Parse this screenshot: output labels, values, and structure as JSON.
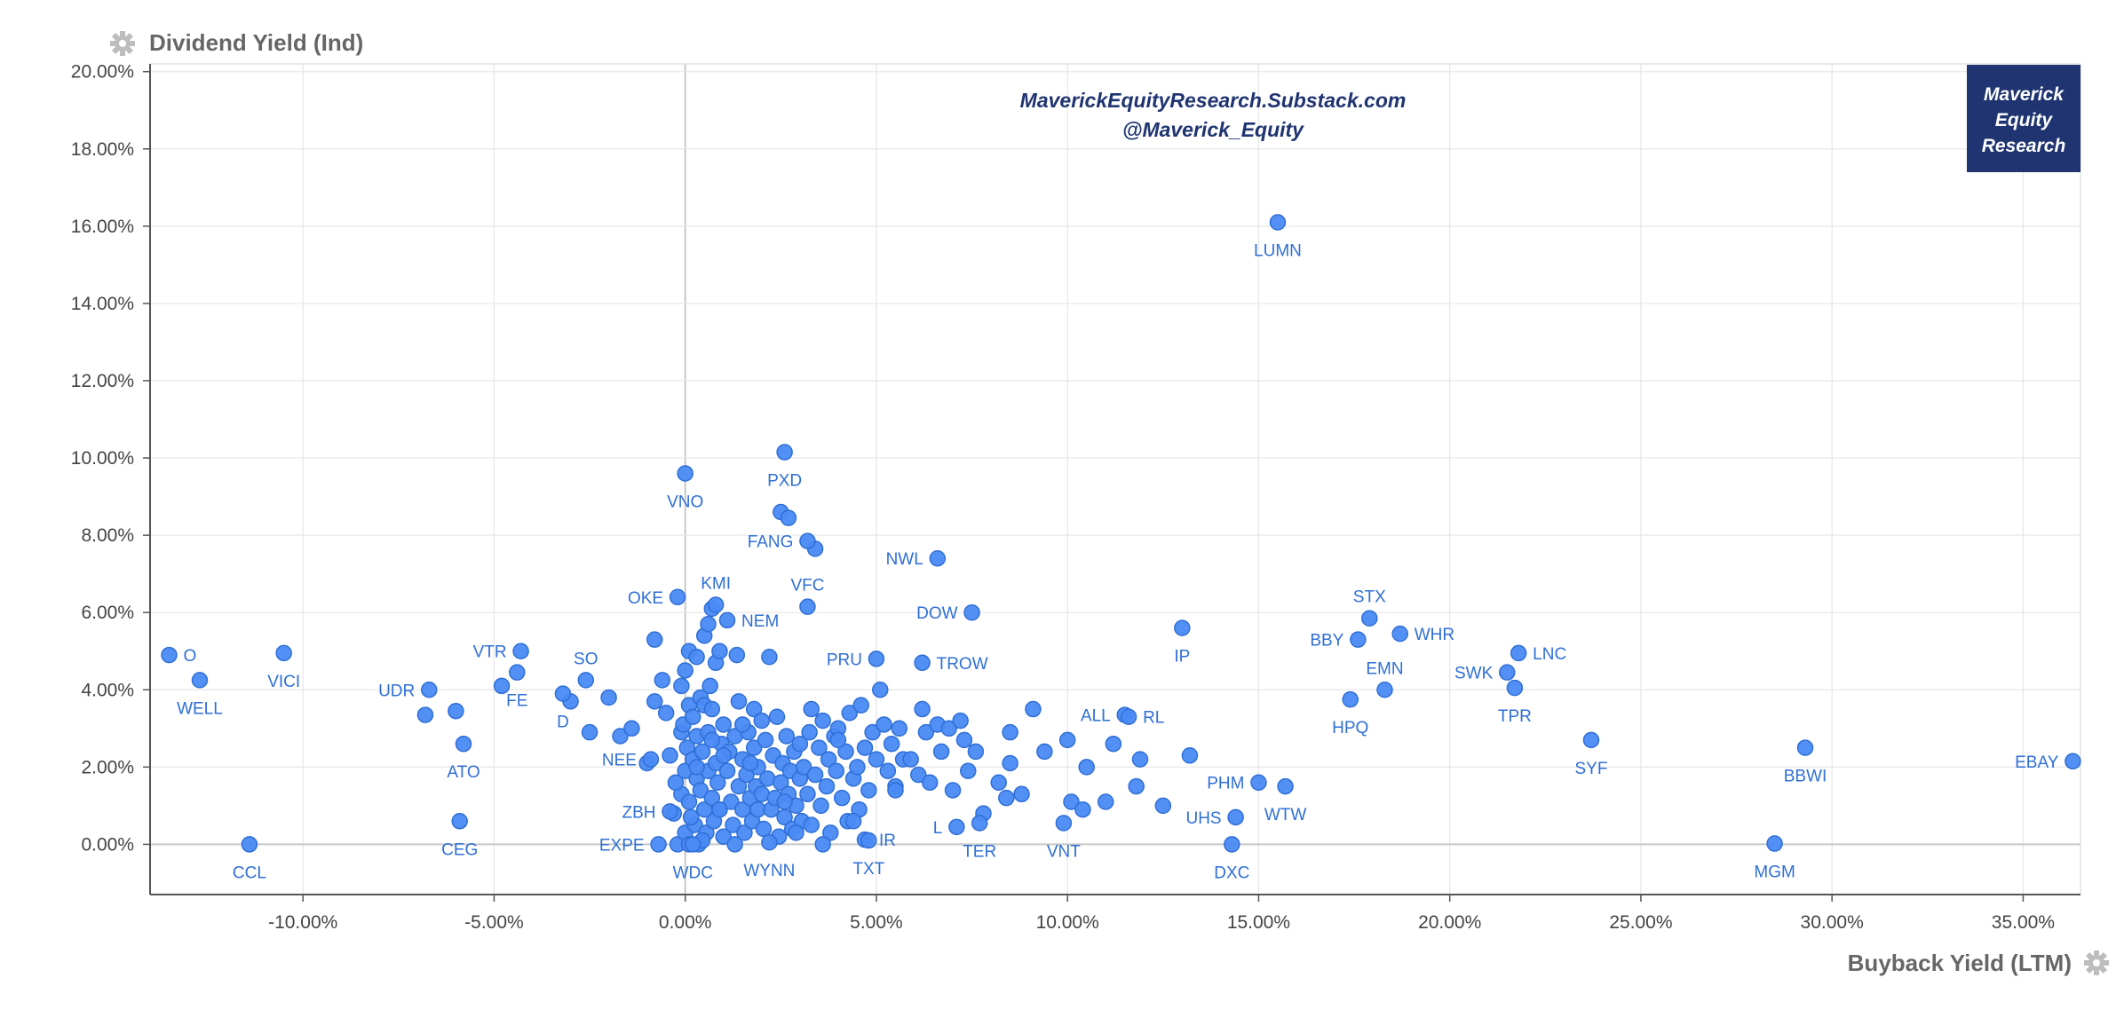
{
  "chart_data": {
    "type": "scatter",
    "ylabel": "Dividend Yield (Ind)",
    "xlabel": "Buyback Yield (LTM)",
    "watermark": [
      "MaverickEquityResearch.Substack.com",
      "@Maverick_Equity"
    ],
    "brand": [
      "Maverick",
      "Equity",
      "Research"
    ],
    "xlim": [
      -14,
      36.5
    ],
    "ylim": [
      -1.3,
      20.2
    ],
    "xticks": [
      -10,
      -5,
      0,
      5,
      10,
      15,
      20,
      25,
      30,
      35
    ],
    "yticks": [
      0,
      2,
      4,
      6,
      8,
      10,
      12,
      14,
      16,
      18,
      20
    ],
    "xtick_labels": [
      "-10.00%",
      "-5.00%",
      "0.00%",
      "5.00%",
      "10.00%",
      "15.00%",
      "20.00%",
      "25.00%",
      "30.00%",
      "35.00%"
    ],
    "ytick_labels": [
      "0.00%",
      "2.00%",
      "4.00%",
      "6.00%",
      "8.00%",
      "10.00%",
      "12.00%",
      "14.00%",
      "16.00%",
      "18.00%",
      "20.00%"
    ],
    "grid": true,
    "colors": {
      "point": "#4a8af4",
      "point_edge": "#2f6fd6",
      "label": "#2f6fd6",
      "brand_bg": "#1f3470",
      "grid": "#e6e6e6",
      "zero_line": "#c8c8c8"
    },
    "labeled_points": [
      {
        "label": "LUMN",
        "x": 15.5,
        "y": 16.1,
        "pos": "below"
      },
      {
        "label": "PXD",
        "x": 2.6,
        "y": 10.15,
        "pos": "below"
      },
      {
        "label": "VNO",
        "x": 0.0,
        "y": 9.6,
        "pos": "below"
      },
      {
        "label": "FANG",
        "x": 3.2,
        "y": 7.85,
        "pos": "left"
      },
      {
        "label": "VFC",
        "x": 3.2,
        "y": 6.15,
        "pos": "above"
      },
      {
        "label": "NWL",
        "x": 6.6,
        "y": 7.4,
        "pos": "left"
      },
      {
        "label": "DOW",
        "x": 7.5,
        "y": 6.0,
        "pos": "left"
      },
      {
        "label": "KMI",
        "x": 0.8,
        "y": 6.2,
        "pos": "above"
      },
      {
        "label": "OKE",
        "x": -0.2,
        "y": 6.4,
        "pos": "left"
      },
      {
        "label": "NEM",
        "x": 1.1,
        "y": 5.8,
        "pos": "right"
      },
      {
        "label": "PRU",
        "x": 5.0,
        "y": 4.8,
        "pos": "left"
      },
      {
        "label": "TROW",
        "x": 6.2,
        "y": 4.7,
        "pos": "right"
      },
      {
        "label": "IP",
        "x": 13.0,
        "y": 5.6,
        "pos": "below"
      },
      {
        "label": "STX",
        "x": 17.9,
        "y": 5.85,
        "pos": "above"
      },
      {
        "label": "BBY",
        "x": 17.6,
        "y": 5.3,
        "pos": "left"
      },
      {
        "label": "WHR",
        "x": 18.7,
        "y": 5.45,
        "pos": "right"
      },
      {
        "label": "EMN",
        "x": 18.3,
        "y": 4.0,
        "pos": "above"
      },
      {
        "label": "HPQ",
        "x": 17.4,
        "y": 3.75,
        "pos": "below"
      },
      {
        "label": "SWK",
        "x": 21.5,
        "y": 4.45,
        "pos": "left"
      },
      {
        "label": "LNC",
        "x": 21.8,
        "y": 4.95,
        "pos": "right"
      },
      {
        "label": "TPR",
        "x": 21.7,
        "y": 4.05,
        "pos": "below"
      },
      {
        "label": "SYF",
        "x": 23.7,
        "y": 2.7,
        "pos": "below"
      },
      {
        "label": "BBWI",
        "x": 29.3,
        "y": 2.5,
        "pos": "below"
      },
      {
        "label": "EBAY",
        "x": 36.3,
        "y": 2.15,
        "pos": "left"
      },
      {
        "label": "MGM",
        "x": 28.5,
        "y": 0.02,
        "pos": "below"
      },
      {
        "label": "ALL",
        "x": 11.5,
        "y": 3.35,
        "pos": "left"
      },
      {
        "label": "RL",
        "x": 11.6,
        "y": 3.3,
        "pos": "right"
      },
      {
        "label": "PHM",
        "x": 15.0,
        "y": 1.6,
        "pos": "left"
      },
      {
        "label": "WTW",
        "x": 15.7,
        "y": 1.5,
        "pos": "below"
      },
      {
        "label": "UHS",
        "x": 14.4,
        "y": 0.7,
        "pos": "left"
      },
      {
        "label": "DXC",
        "x": 14.3,
        "y": 0.0,
        "pos": "below"
      },
      {
        "label": "VNT",
        "x": 9.9,
        "y": 0.55,
        "pos": "below"
      },
      {
        "label": "TER",
        "x": 7.7,
        "y": 0.55,
        "pos": "below"
      },
      {
        "label": "L",
        "x": 7.1,
        "y": 0.45,
        "pos": "left"
      },
      {
        "label": "IR",
        "x": 4.7,
        "y": 0.12,
        "pos": "right"
      },
      {
        "label": "TXT",
        "x": 4.8,
        "y": 0.1,
        "pos": "below"
      },
      {
        "label": "WYNN",
        "x": 2.2,
        "y": 0.05,
        "pos": "below"
      },
      {
        "label": "WDC",
        "x": 0.2,
        "y": 0.0,
        "pos": "below"
      },
      {
        "label": "EXPE",
        "x": -0.7,
        "y": 0.0,
        "pos": "left"
      },
      {
        "label": "ZBH",
        "x": -0.4,
        "y": 0.85,
        "pos": "left"
      },
      {
        "label": "NEE",
        "x": -0.9,
        "y": 2.2,
        "pos": "left"
      },
      {
        "label": "SO",
        "x": -2.6,
        "y": 4.25,
        "pos": "above"
      },
      {
        "label": "D",
        "x": -3.2,
        "y": 3.9,
        "pos": "below"
      },
      {
        "label": "VTR",
        "x": -4.3,
        "y": 5.0,
        "pos": "left"
      },
      {
        "label": "FE",
        "x": -4.4,
        "y": 4.45,
        "pos": "below"
      },
      {
        "label": "UDR",
        "x": -6.7,
        "y": 4.0,
        "pos": "left"
      },
      {
        "label": "ATO",
        "x": -5.8,
        "y": 2.6,
        "pos": "below"
      },
      {
        "label": "CEG",
        "x": -5.9,
        "y": 0.6,
        "pos": "below"
      },
      {
        "label": "CCL",
        "x": -11.4,
        "y": 0.0,
        "pos": "below"
      },
      {
        "label": "VICI",
        "x": -10.5,
        "y": 4.95,
        "pos": "below"
      },
      {
        "label": "O",
        "x": -13.5,
        "y": 4.9,
        "pos": "right"
      },
      {
        "label": "WELL",
        "x": -12.7,
        "y": 4.25,
        "pos": "below"
      }
    ],
    "points": [
      [
        -6.8,
        3.35
      ],
      [
        -6.0,
        3.45
      ],
      [
        -4.8,
        4.1
      ],
      [
        -3.0,
        3.7
      ],
      [
        -2.5,
        2.9
      ],
      [
        -2.0,
        3.8
      ],
      [
        -1.7,
        2.8
      ],
      [
        -1.4,
        3.0
      ],
      [
        -1.0,
        2.1
      ],
      [
        -0.8,
        3.7
      ],
      [
        -0.8,
        5.3
      ],
      [
        -0.6,
        4.25
      ],
      [
        -0.5,
        3.4
      ],
      [
        -0.4,
        2.3
      ],
      [
        -0.3,
        0.8
      ],
      [
        -0.2,
        0.0
      ],
      [
        -0.1,
        1.3
      ],
      [
        -0.1,
        2.9
      ],
      [
        0.0,
        4.5
      ],
      [
        0.0,
        0.3
      ],
      [
        0.0,
        1.9
      ],
      [
        -0.05,
        3.1
      ],
      [
        -0.1,
        4.1
      ],
      [
        0.05,
        2.5
      ],
      [
        0.1,
        5.0
      ],
      [
        0.1,
        3.6
      ],
      [
        0.1,
        1.1
      ],
      [
        0.1,
        0.0
      ],
      [
        0.2,
        2.2
      ],
      [
        0.2,
        3.3
      ],
      [
        0.25,
        0.5
      ],
      [
        0.3,
        1.7
      ],
      [
        0.3,
        4.85
      ],
      [
        0.3,
        2.8
      ],
      [
        0.35,
        0.0
      ],
      [
        0.4,
        3.8
      ],
      [
        0.4,
        1.4
      ],
      [
        0.45,
        2.4
      ],
      [
        0.5,
        0.9
      ],
      [
        0.5,
        3.6
      ],
      [
        0.5,
        5.4
      ],
      [
        0.55,
        0.3
      ],
      [
        0.6,
        1.9
      ],
      [
        0.6,
        2.9
      ],
      [
        0.65,
        4.1
      ],
      [
        0.7,
        1.2
      ],
      [
        0.7,
        3.5
      ],
      [
        0.75,
        0.6
      ],
      [
        0.8,
        2.1
      ],
      [
        0.8,
        4.7
      ],
      [
        0.85,
        1.6
      ],
      [
        0.9,
        5.0
      ],
      [
        0.9,
        0.9
      ],
      [
        0.95,
        2.6
      ],
      [
        1.0,
        0.2
      ],
      [
        1.0,
        3.1
      ],
      [
        1.1,
        1.9
      ],
      [
        1.15,
        2.4
      ],
      [
        1.2,
        1.1
      ],
      [
        1.25,
        0.5
      ],
      [
        1.3,
        2.8
      ],
      [
        1.35,
        4.9
      ],
      [
        1.4,
        1.5
      ],
      [
        1.4,
        3.7
      ],
      [
        1.5,
        0.9
      ],
      [
        1.5,
        2.2
      ],
      [
        1.55,
        0.3
      ],
      [
        1.6,
        1.8
      ],
      [
        1.65,
        2.9
      ],
      [
        1.7,
        1.2
      ],
      [
        1.75,
        0.6
      ],
      [
        1.8,
        2.5
      ],
      [
        1.8,
        3.5
      ],
      [
        1.85,
        1.5
      ],
      [
        1.9,
        0.9
      ],
      [
        1.9,
        2.0
      ],
      [
        2.0,
        3.2
      ],
      [
        2.0,
        1.3
      ],
      [
        2.05,
        0.4
      ],
      [
        2.1,
        2.7
      ],
      [
        2.15,
        1.7
      ],
      [
        2.2,
        4.85
      ],
      [
        2.25,
        0.9
      ],
      [
        2.3,
        2.3
      ],
      [
        2.35,
        1.2
      ],
      [
        2.4,
        3.3
      ],
      [
        2.45,
        0.2
      ],
      [
        2.5,
        1.6
      ],
      [
        2.55,
        2.1
      ],
      [
        2.6,
        0.7
      ],
      [
        2.65,
        2.8
      ],
      [
        2.7,
        1.3
      ],
      [
        2.75,
        1.9
      ],
      [
        2.8,
        0.4
      ],
      [
        2.85,
        2.4
      ],
      [
        2.9,
        1.0
      ],
      [
        3.0,
        1.7
      ],
      [
        3.0,
        2.6
      ],
      [
        3.05,
        0.6
      ],
      [
        3.1,
        2.0
      ],
      [
        3.2,
        1.3
      ],
      [
        3.25,
        2.9
      ],
      [
        3.3,
        0.5
      ],
      [
        3.3,
        3.5
      ],
      [
        3.4,
        1.8
      ],
      [
        3.5,
        2.5
      ],
      [
        3.55,
        1.0
      ],
      [
        3.6,
        3.2
      ],
      [
        3.7,
        1.5
      ],
      [
        3.75,
        2.2
      ],
      [
        3.8,
        0.3
      ],
      [
        3.9,
        2.8
      ],
      [
        3.95,
        1.9
      ],
      [
        4.0,
        3.0
      ],
      [
        4.1,
        1.2
      ],
      [
        4.2,
        2.4
      ],
      [
        4.25,
        0.6
      ],
      [
        4.3,
        3.4
      ],
      [
        4.4,
        1.7
      ],
      [
        4.5,
        2.0
      ],
      [
        4.55,
        0.9
      ],
      [
        4.6,
        3.6
      ],
      [
        4.7,
        2.5
      ],
      [
        4.8,
        1.4
      ],
      [
        4.9,
        2.9
      ],
      [
        5.0,
        2.2
      ],
      [
        5.1,
        4.0
      ],
      [
        5.2,
        3.1
      ],
      [
        5.3,
        1.9
      ],
      [
        5.4,
        2.6
      ],
      [
        5.5,
        1.5
      ],
      [
        5.6,
        3.0
      ],
      [
        5.7,
        2.2
      ],
      [
        5.9,
        2.2
      ],
      [
        6.1,
        1.8
      ],
      [
        6.2,
        3.5
      ],
      [
        6.3,
        2.9
      ],
      [
        6.4,
        1.6
      ],
      [
        6.6,
        3.1
      ],
      [
        6.7,
        2.4
      ],
      [
        6.9,
        3.0
      ],
      [
        7.0,
        1.4
      ],
      [
        7.2,
        3.2
      ],
      [
        7.3,
        2.7
      ],
      [
        7.4,
        1.9
      ],
      [
        7.6,
        2.4
      ],
      [
        7.8,
        0.8
      ],
      [
        8.2,
        1.6
      ],
      [
        8.4,
        1.2
      ],
      [
        8.5,
        2.9
      ],
      [
        8.5,
        2.1
      ],
      [
        8.8,
        1.3
      ],
      [
        9.1,
        3.5
      ],
      [
        9.4,
        2.4
      ],
      [
        10.0,
        2.7
      ],
      [
        10.1,
        1.1
      ],
      [
        10.4,
        0.9
      ],
      [
        10.5,
        2.0
      ],
      [
        11.0,
        1.1
      ],
      [
        11.2,
        2.6
      ],
      [
        11.8,
        1.5
      ],
      [
        11.9,
        2.2
      ],
      [
        12.5,
        1.0
      ],
      [
        13.2,
        2.3
      ],
      [
        2.5,
        8.6
      ],
      [
        2.7,
        8.45
      ],
      [
        3.4,
        7.65
      ],
      [
        0.6,
        5.7
      ],
      [
        0.7,
        6.1
      ],
      [
        0.3,
        2.0
      ],
      [
        1.7,
        2.1
      ],
      [
        2.6,
        1.1
      ],
      [
        4.4,
        0.6
      ],
      [
        5.5,
        1.4
      ],
      [
        0.9,
        0.9
      ],
      [
        1.0,
        2.3
      ],
      [
        0.15,
        0.7
      ],
      [
        -0.25,
        1.6
      ],
      [
        0.45,
        0.1
      ],
      [
        2.9,
        0.3
      ],
      [
        3.6,
        0.0
      ],
      [
        1.3,
        0.0
      ],
      [
        0.7,
        2.7
      ],
      [
        1.5,
        3.1
      ],
      [
        4.0,
        2.7
      ]
    ]
  }
}
